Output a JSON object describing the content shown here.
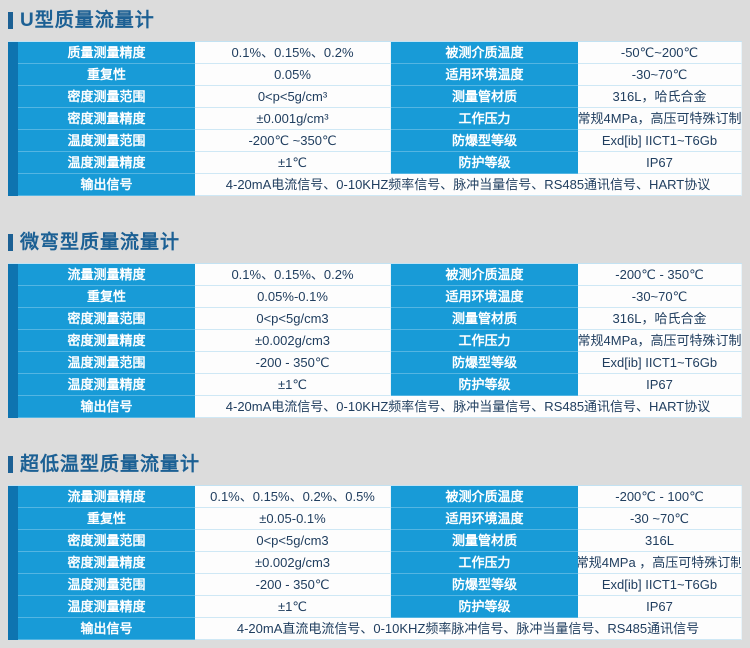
{
  "colors": {
    "page_background": "#dcdcdc",
    "title_blue": "#1c6094",
    "label_cell_blue": "#189bd7",
    "label_strip_dark_blue": "#0e74b0",
    "value_text_navy": "#203e5f"
  },
  "sections": [
    {
      "title": "U型质量流量计",
      "rows": [
        {
          "label1": "质量测量精度",
          "value1": "0.1%、0.15%、0.2%",
          "label2": "被测介质温度",
          "value2": "-50℃~200℃"
        },
        {
          "label1": "重复性",
          "value1": "0.05%",
          "label2": "适用环境温度",
          "value2": "-30~70℃"
        },
        {
          "label1": "密度测量范围",
          "value1": "0<p<5g/cm³",
          "label2": "测量管材质",
          "value2": "316L，哈氏合金"
        },
        {
          "label1": "密度测量精度",
          "value1": "±0.001g/cm³",
          "label2": "工作压力",
          "value2": "常规4MPa，高压可特殊订制"
        },
        {
          "label1": "温度测量范围",
          "value1": "-200℃ ~350℃",
          "label2": "防爆型等级",
          "value2": "Exd[ib] IICT1~T6Gb"
        },
        {
          "label1": "温度测量精度",
          "value1": "±1℃",
          "label2": "防护等级",
          "value2": "IP67"
        }
      ],
      "output_row": {
        "label": "输出信号",
        "value": "4-20mA电流信号、0-10KHZ频率信号、脉冲当量信号、RS485通讯信号、HART协议"
      }
    },
    {
      "title": "微弯型质量流量计",
      "rows": [
        {
          "label1": "流量测量精度",
          "value1": "0.1%、0.15%、0.2%",
          "label2": "被测介质温度",
          "value2": "-200℃ - 350℃"
        },
        {
          "label1": "重复性",
          "value1": "0.05%-0.1%",
          "label2": "适用环境温度",
          "value2": "-30~70℃"
        },
        {
          "label1": "密度测量范围",
          "value1": "0<p<5g/cm3",
          "label2": "测量管材质",
          "value2": "316L，哈氏合金"
        },
        {
          "label1": "密度测量精度",
          "value1": "±0.002g/cm3",
          "label2": "工作压力",
          "value2": "常规4MPa，高压可特殊订制"
        },
        {
          "label1": "温度测量范围",
          "value1": "-200 - 350℃",
          "label2": "防爆型等级",
          "value2": "Exd[ib] IICT1~T6Gb"
        },
        {
          "label1": "温度测量精度",
          "value1": "±1℃",
          "label2": "防护等级",
          "value2": "IP67"
        }
      ],
      "output_row": {
        "label": "输出信号",
        "value": "4-20mA电流信号、0-10KHZ频率信号、脉冲当量信号、RS485通讯信号、HART协议"
      }
    },
    {
      "title": "超低温型质量流量计",
      "rows": [
        {
          "label1": "流量测量精度",
          "value1": "0.1%、0.15%、0.2%、0.5%",
          "label2": "被测介质温度",
          "value2": "-200℃ - 100℃"
        },
        {
          "label1": "重复性",
          "value1": "±0.05-0.1%",
          "label2": "适用环境温度",
          "value2": "-30 ~70℃"
        },
        {
          "label1": "密度测量范围",
          "value1": "0<p<5g/cm3",
          "label2": "测量管材质",
          "value2": "316L"
        },
        {
          "label1": "密度测量精度",
          "value1": "±0.002g/cm3",
          "label2": "工作压力",
          "value2": "常规4MPa ，高压可特殊订制"
        },
        {
          "label1": "温度测量范围",
          "value1": "-200 - 350℃",
          "label2": "防爆型等级",
          "value2": "Exd[ib] IICT1~T6Gb"
        },
        {
          "label1": "温度测量精度",
          "value1": "±1℃",
          "label2": "防护等级",
          "value2": "IP67"
        }
      ],
      "output_row": {
        "label": "输出信号",
        "value": "4-20mA直流电流信号、0-10KHZ频率脉冲信号、脉冲当量信号、RS485通讯信号"
      }
    }
  ]
}
